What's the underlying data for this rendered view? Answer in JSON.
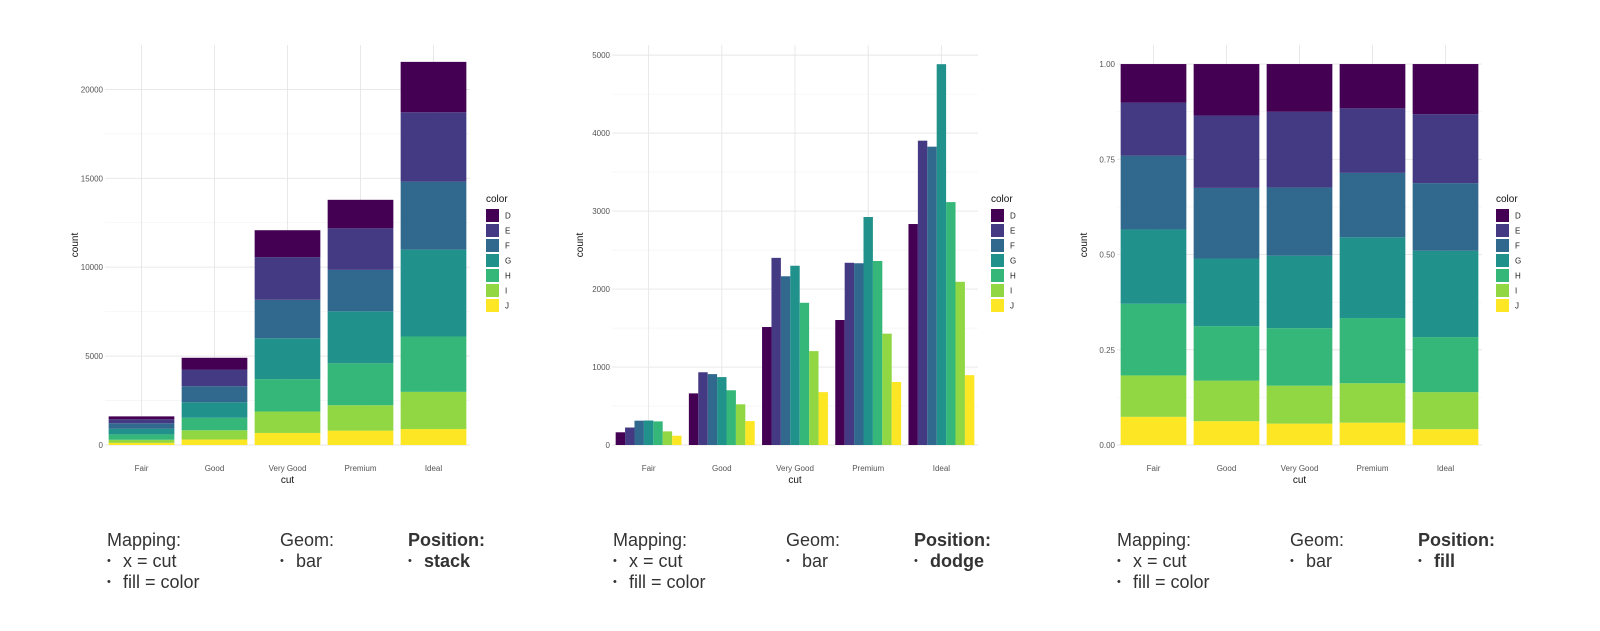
{
  "chart_data": [
    {
      "type": "bar",
      "position": "stack",
      "categories": [
        "Fair",
        "Good",
        "Very Good",
        "Premium",
        "Ideal"
      ],
      "xlabel": "cut",
      "ylabel": "count",
      "ylim": [
        0,
        22500
      ],
      "yticks": [
        0,
        5000,
        10000,
        15000,
        20000
      ],
      "grid": true,
      "legend": {
        "title": "color",
        "placement": "right"
      },
      "series": [
        {
          "name": "D",
          "color": "#440154",
          "values": [
            163,
            662,
            1513,
            1603,
            2834
          ]
        },
        {
          "name": "E",
          "color": "#443983",
          "values": [
            224,
            933,
            2400,
            2337,
            3903
          ]
        },
        {
          "name": "F",
          "color": "#31688e",
          "values": [
            312,
            909,
            2164,
            2331,
            3826
          ]
        },
        {
          "name": "G",
          "color": "#21918c",
          "values": [
            314,
            871,
            2299,
            2924,
            4884
          ]
        },
        {
          "name": "H",
          "color": "#35b779",
          "values": [
            303,
            702,
            1824,
            2360,
            3115
          ]
        },
        {
          "name": "I",
          "color": "#90d743",
          "values": [
            175,
            522,
            1204,
            1428,
            2093
          ]
        },
        {
          "name": "J",
          "color": "#fde725",
          "values": [
            119,
            307,
            678,
            808,
            896
          ]
        }
      ]
    },
    {
      "type": "bar",
      "position": "dodge",
      "categories": [
        "Fair",
        "Good",
        "Very Good",
        "Premium",
        "Ideal"
      ],
      "xlabel": "cut",
      "ylabel": "count",
      "ylim": [
        0,
        5130
      ],
      "yticks": [
        0,
        1000,
        2000,
        3000,
        4000,
        5000
      ],
      "grid": true,
      "legend": {
        "title": "color",
        "placement": "right"
      },
      "series": [
        {
          "name": "D",
          "color": "#440154",
          "values": [
            163,
            662,
            1513,
            1603,
            2834
          ]
        },
        {
          "name": "E",
          "color": "#443983",
          "values": [
            224,
            933,
            2400,
            2337,
            3903
          ]
        },
        {
          "name": "F",
          "color": "#31688e",
          "values": [
            312,
            909,
            2164,
            2331,
            3826
          ]
        },
        {
          "name": "G",
          "color": "#21918c",
          "values": [
            314,
            871,
            2299,
            2924,
            4884
          ]
        },
        {
          "name": "H",
          "color": "#35b779",
          "values": [
            303,
            702,
            1824,
            2360,
            3115
          ]
        },
        {
          "name": "I",
          "color": "#90d743",
          "values": [
            175,
            522,
            1204,
            1428,
            2093
          ]
        },
        {
          "name": "J",
          "color": "#fde725",
          "values": [
            119,
            307,
            678,
            808,
            896
          ]
        }
      ]
    },
    {
      "type": "bar",
      "position": "fill",
      "categories": [
        "Fair",
        "Good",
        "Very Good",
        "Premium",
        "Ideal"
      ],
      "xlabel": "cut",
      "ylabel": "count",
      "ylim": [
        0,
        1.05
      ],
      "yticks": [
        0,
        0.25,
        0.5,
        0.75,
        1.0
      ],
      "ytick_labels": [
        "0.00",
        "0.25",
        "0.50",
        "0.75",
        "1.00"
      ],
      "grid": true,
      "legend": {
        "title": "color",
        "placement": "right"
      },
      "series": [
        {
          "name": "D",
          "color": "#440154",
          "values": [
            163,
            662,
            1513,
            1603,
            2834
          ]
        },
        {
          "name": "E",
          "color": "#443983",
          "values": [
            224,
            933,
            2400,
            2337,
            3903
          ]
        },
        {
          "name": "F",
          "color": "#31688e",
          "values": [
            312,
            909,
            2164,
            2331,
            3826
          ]
        },
        {
          "name": "G",
          "color": "#21918c",
          "values": [
            314,
            871,
            2299,
            2924,
            4884
          ]
        },
        {
          "name": "H",
          "color": "#35b779",
          "values": [
            303,
            702,
            1824,
            2360,
            3115
          ]
        },
        {
          "name": "I",
          "color": "#90d743",
          "values": [
            175,
            522,
            1204,
            1428,
            2093
          ]
        },
        {
          "name": "J",
          "color": "#fde725",
          "values": [
            119,
            307,
            678,
            808,
            896
          ]
        }
      ]
    }
  ],
  "descriptions": [
    {
      "mapping_title": "Mapping:",
      "mapping_items": [
        "x = cut",
        "fill = color"
      ],
      "geom_title": "Geom:",
      "geom_items": [
        "bar"
      ],
      "position_title": "Position:",
      "position_value": "stack"
    },
    {
      "mapping_title": "Mapping:",
      "mapping_items": [
        "x = cut",
        "fill = color"
      ],
      "geom_title": "Geom:",
      "geom_items": [
        "bar"
      ],
      "position_title": "Position:",
      "position_value": "dodge"
    },
    {
      "mapping_title": "Mapping:",
      "mapping_items": [
        "x = cut",
        "fill = color"
      ],
      "geom_title": "Geom:",
      "geom_items": [
        "bar"
      ],
      "position_title": "Position:",
      "position_value": "fill"
    }
  ]
}
